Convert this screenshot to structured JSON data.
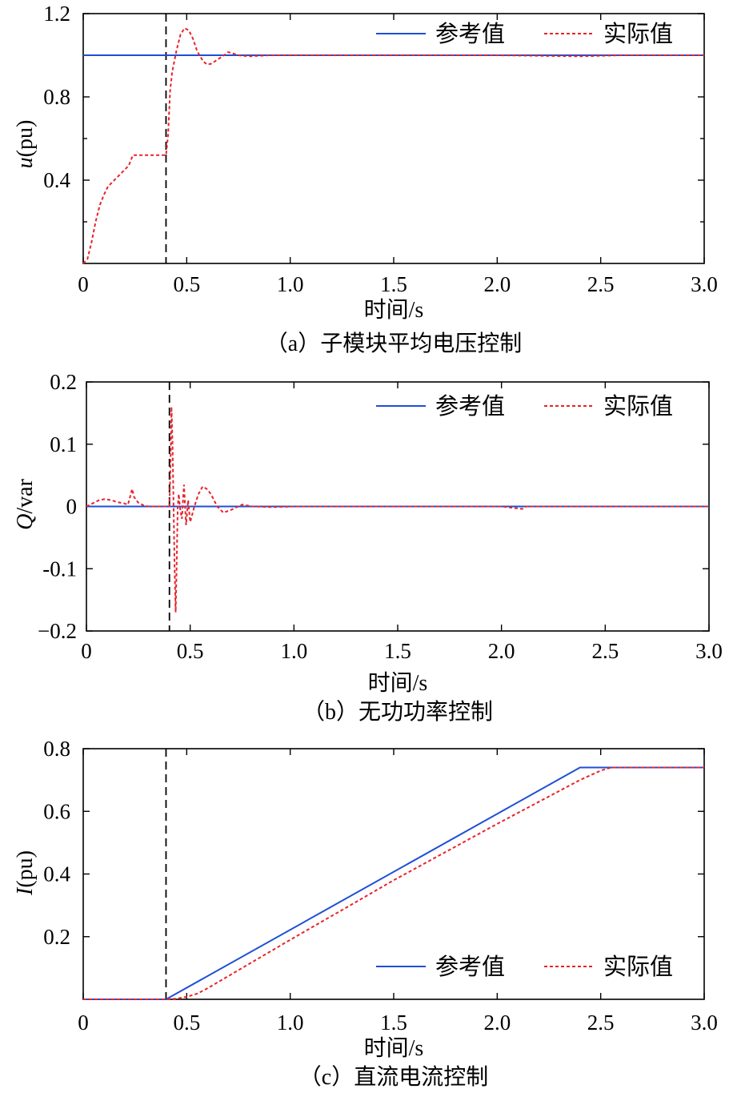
{
  "chart_data": [
    {
      "type": "line",
      "id": "a",
      "caption": "（a）子模块平均电压控制",
      "ylabel_italic": "u",
      "ylabel_rest": "(pu)",
      "xlabel": "时间/s",
      "xlim": [
        0,
        3.0
      ],
      "ylim": [
        0,
        1.2
      ],
      "xticks": [
        0,
        0.5,
        1.0,
        1.5,
        2.0,
        2.5,
        3.0
      ],
      "xtick_labels": [
        "0",
        "0.5",
        "1.0",
        "1.5",
        "2.0",
        "2.5",
        "3.0"
      ],
      "yticks": [
        0.4,
        0.8,
        1.2
      ],
      "ytick_labels": [
        "0.4",
        "0.8",
        "1.2"
      ],
      "minor_yticks": [
        0.2,
        0.6,
        1.0
      ],
      "vline_x": 0.4,
      "legend_position": "top-right",
      "series": [
        {
          "name": "参考值",
          "color": "#1f4fd6",
          "style": "solid",
          "x": [
            0,
            3.0
          ],
          "y": [
            1.0,
            1.0
          ]
        },
        {
          "name": "实际值",
          "color": "#e8232a",
          "style": "dotted",
          "x": [
            0.0,
            0.02,
            0.04,
            0.06,
            0.08,
            0.1,
            0.12,
            0.14,
            0.16,
            0.18,
            0.2,
            0.22,
            0.24,
            0.3,
            0.35,
            0.4,
            0.41,
            0.42,
            0.43,
            0.45,
            0.47,
            0.49,
            0.51,
            0.53,
            0.55,
            0.58,
            0.6,
            0.62,
            0.65,
            0.68,
            0.7,
            0.72,
            0.75,
            0.8,
            0.9,
            1.0,
            1.5,
            2.0,
            2.4,
            2.6,
            3.0
          ],
          "y": [
            0.0,
            0.02,
            0.1,
            0.2,
            0.28,
            0.33,
            0.37,
            0.39,
            0.41,
            0.43,
            0.45,
            0.47,
            0.52,
            0.52,
            0.52,
            0.52,
            0.62,
            0.83,
            0.92,
            1.02,
            1.1,
            1.13,
            1.12,
            1.08,
            1.02,
            0.97,
            0.955,
            0.96,
            0.98,
            1.0,
            1.015,
            1.01,
            1.0,
            0.995,
            1.0,
            1.0,
            1.0,
            1.0,
            0.995,
            1.0,
            1.0
          ]
        }
      ]
    },
    {
      "type": "line",
      "id": "b",
      "caption": "（b）无功功率控制",
      "ylabel_italic": "Q",
      "ylabel_rest": "/var",
      "xlabel": "时间/s",
      "xlim": [
        0,
        3.0
      ],
      "ylim": [
        -0.2,
        0.2
      ],
      "xticks": [
        0,
        0.5,
        1.0,
        1.5,
        2.0,
        2.5,
        3.0
      ],
      "xtick_labels": [
        "0",
        "0.5",
        "1.0",
        "1.5",
        "2.0",
        "2.5",
        "3.0"
      ],
      "yticks": [
        -0.2,
        -0.1,
        0,
        0.1,
        0.2
      ],
      "ytick_labels": [
        "−0.2",
        "-0.1",
        "0",
        "0.1",
        "0.2"
      ],
      "minor_yticks": [],
      "vline_x": 0.4,
      "legend_position": "top-right",
      "series": [
        {
          "name": "参考值",
          "color": "#1f4fd6",
          "style": "solid",
          "x": [
            0,
            3.0
          ],
          "y": [
            0,
            0
          ]
        },
        {
          "name": "实际值",
          "color": "#e8232a",
          "style": "dotted",
          "x": [
            0.0,
            0.03,
            0.06,
            0.09,
            0.12,
            0.15,
            0.18,
            0.2,
            0.21,
            0.22,
            0.23,
            0.25,
            0.28,
            0.3,
            0.35,
            0.4,
            0.405,
            0.41,
            0.415,
            0.42,
            0.425,
            0.43,
            0.435,
            0.44,
            0.445,
            0.45,
            0.46,
            0.47,
            0.48,
            0.49,
            0.5,
            0.52,
            0.54,
            0.56,
            0.58,
            0.6,
            0.63,
            0.66,
            0.7,
            0.75,
            0.8,
            0.9,
            1.0,
            1.5,
            2.0,
            2.1,
            2.12,
            2.15,
            2.5,
            3.0
          ],
          "y": [
            0.0,
            0.005,
            0.01,
            0.012,
            0.01,
            0.007,
            0.005,
            0.003,
            0.015,
            0.028,
            0.015,
            0.006,
            0.001,
            0.0,
            0.0,
            0.0,
            0.06,
            0.16,
            0.1,
            0.0,
            -0.1,
            -0.17,
            -0.09,
            0.0,
            0.02,
            0.0,
            -0.02,
            0.035,
            -0.03,
            0.01,
            -0.025,
            0.0,
            0.02,
            0.032,
            0.028,
            0.02,
            0.0,
            -0.01,
            -0.005,
            0.003,
            0.0,
            -0.001,
            0.0,
            0.0,
            0.0,
            -0.004,
            0.0,
            0.0,
            0.0,
            0.0
          ]
        }
      ]
    },
    {
      "type": "line",
      "id": "c",
      "caption": "（c）直流电流控制",
      "ylabel_italic": "I",
      "ylabel_rest": "(pu)",
      "xlabel": "时间/s",
      "xlim": [
        0,
        3.0
      ],
      "ylim": [
        0,
        0.8
      ],
      "xticks": [
        0,
        0.5,
        1.0,
        1.5,
        2.0,
        2.5,
        3.0
      ],
      "xtick_labels": [
        "0",
        "0.5",
        "1.0",
        "1.5",
        "2.0",
        "2.5",
        "3.0"
      ],
      "yticks": [
        0.2,
        0.4,
        0.6,
        0.8
      ],
      "ytick_labels": [
        "0.2",
        "0.4",
        "0.6",
        "0.8"
      ],
      "minor_yticks": [],
      "vline_x": 0.4,
      "legend_position": "bottom-right",
      "series": [
        {
          "name": "参考值",
          "color": "#1f4fd6",
          "style": "solid",
          "x": [
            0,
            0.4,
            2.4,
            3.0
          ],
          "y": [
            0,
            0,
            0.74,
            0.74
          ]
        },
        {
          "name": "实际值",
          "color": "#e8232a",
          "style": "dotted",
          "x": [
            0,
            0.4,
            0.45,
            0.5,
            0.55,
            0.6,
            1.0,
            1.5,
            2.0,
            2.4,
            2.5,
            2.55,
            2.6,
            3.0
          ],
          "y": [
            0,
            0,
            0.002,
            0.008,
            0.018,
            0.035,
            0.19,
            0.38,
            0.56,
            0.7,
            0.73,
            0.74,
            0.74,
            0.74
          ]
        }
      ]
    }
  ]
}
